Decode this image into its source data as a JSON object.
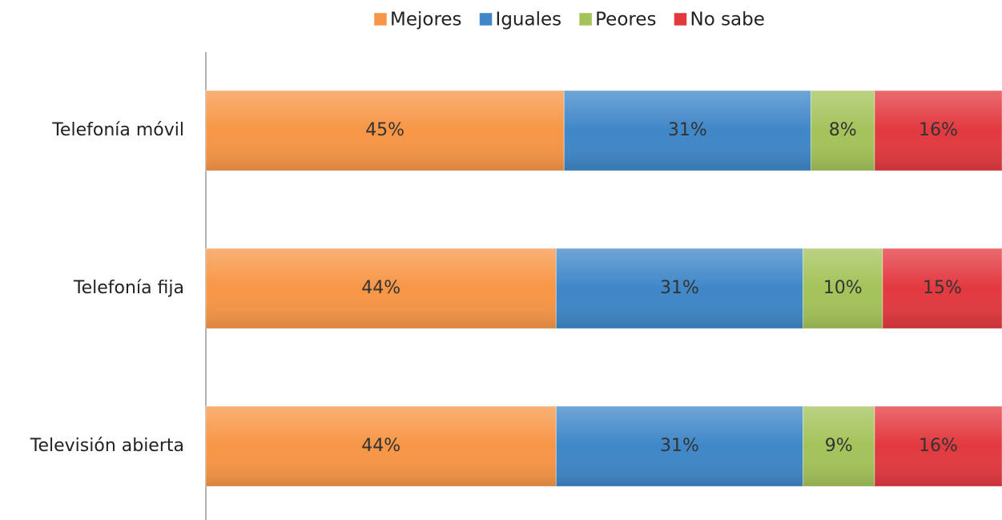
{
  "chart_data": {
    "type": "stacked-bar-horizontal",
    "categories": [
      "Telefonía móvil",
      "Telefonía fija",
      "Televisión abierta"
    ],
    "series": [
      {
        "name": "Mejores",
        "color": "#f79646",
        "values": [
          45,
          44,
          44
        ],
        "value_labels": [
          "45%",
          "44%",
          "44%"
        ]
      },
      {
        "name": "Iguales",
        "color": "#3f87c8",
        "values": [
          31,
          31,
          31
        ],
        "value_labels": [
          "31%",
          "31%",
          "31%"
        ]
      },
      {
        "name": "Peores",
        "color": "#a4c35a",
        "values": [
          8,
          10,
          9
        ],
        "value_labels": [
          "8%",
          "10%",
          "9%"
        ]
      },
      {
        "name": "No sabe",
        "color": "#e2393f",
        "values": [
          16,
          15,
          16
        ],
        "value_labels": [
          "16%",
          "15%",
          "16%"
        ]
      }
    ],
    "xlim": [
      0,
      100
    ],
    "legend": "top"
  }
}
